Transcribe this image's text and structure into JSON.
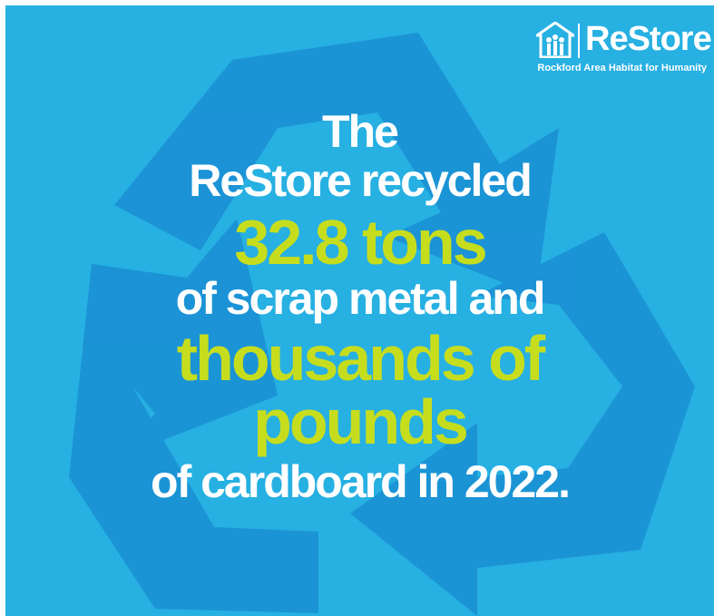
{
  "logo": {
    "name": "ReStore",
    "subtitle": "Rockford Area Habitat for Humanity",
    "icon": "habitat-house-icon"
  },
  "message": {
    "line1": "The",
    "line2": "ReStore recycled",
    "line3": "32.8 tons",
    "line4": "of scrap metal and",
    "line5": "thousands of",
    "line6": "pounds",
    "line7": "of cardboard in 2022."
  },
  "background_icon": "recycle-icon",
  "colors": {
    "background": "#27b0e2",
    "recycle_arrows": "#1a8fd4",
    "highlight": "#c6dd1e",
    "text": "#ffffff"
  }
}
